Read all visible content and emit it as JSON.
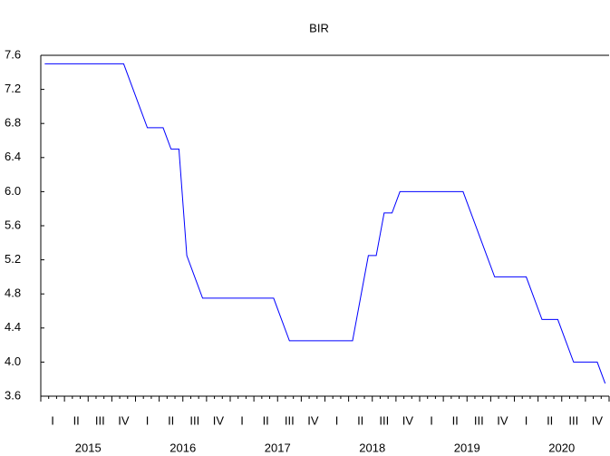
{
  "chart_data": {
    "type": "line",
    "title": "BIR",
    "categories": [
      null,
      "I",
      null,
      null,
      "II",
      null,
      null,
      "III",
      null,
      null,
      "IV",
      null,
      null,
      "I",
      null,
      null,
      "II",
      null,
      null,
      "III",
      null,
      null,
      "IV",
      null,
      null,
      "I",
      null,
      null,
      "II",
      null,
      null,
      "III",
      null,
      null,
      "IV",
      null,
      null,
      "I",
      null,
      null,
      "II",
      null,
      null,
      "III",
      null,
      null,
      "IV",
      null,
      null,
      "I",
      null,
      null,
      "II",
      null,
      null,
      "III",
      null,
      null,
      "IV",
      null,
      null,
      "I",
      null,
      null,
      "II",
      null,
      null,
      "III",
      null,
      null,
      "IV",
      null
    ],
    "year_labels": [
      "2015",
      "2016",
      "2017",
      "2018",
      "2019",
      "2020"
    ],
    "values": [
      7.5,
      7.5,
      7.5,
      7.5,
      7.5,
      7.5,
      7.5,
      7.5,
      7.5,
      7.5,
      7.5,
      7.25,
      7.0,
      6.75,
      6.75,
      6.75,
      6.5,
      6.5,
      5.25,
      5.0,
      4.75,
      4.75,
      4.75,
      4.75,
      4.75,
      4.75,
      4.75,
      4.75,
      4.75,
      4.75,
      4.5,
      4.25,
      4.25,
      4.25,
      4.25,
      4.25,
      4.25,
      4.25,
      4.25,
      4.25,
      4.75,
      5.25,
      5.25,
      5.75,
      5.75,
      6.0,
      6.0,
      6.0,
      6.0,
      6.0,
      6.0,
      6.0,
      6.0,
      6.0,
      5.75,
      5.5,
      5.25,
      5.0,
      5.0,
      5.0,
      5.0,
      5.0,
      4.75,
      4.5,
      4.5,
      4.5,
      4.25,
      4.0,
      4.0,
      4.0,
      4.0,
      3.75
    ],
    "color": "#0000ff",
    "ylim": [
      3.6,
      7.6
    ],
    "yticks": [
      3.6,
      {
        "value": 4.0,
        "label": "4.0"
      },
      4.4,
      4.8,
      5.2,
      5.6,
      {
        "value": 6.0,
        "label": "6.0"
      },
      6.4,
      6.8,
      7.2,
      7.6
    ]
  }
}
